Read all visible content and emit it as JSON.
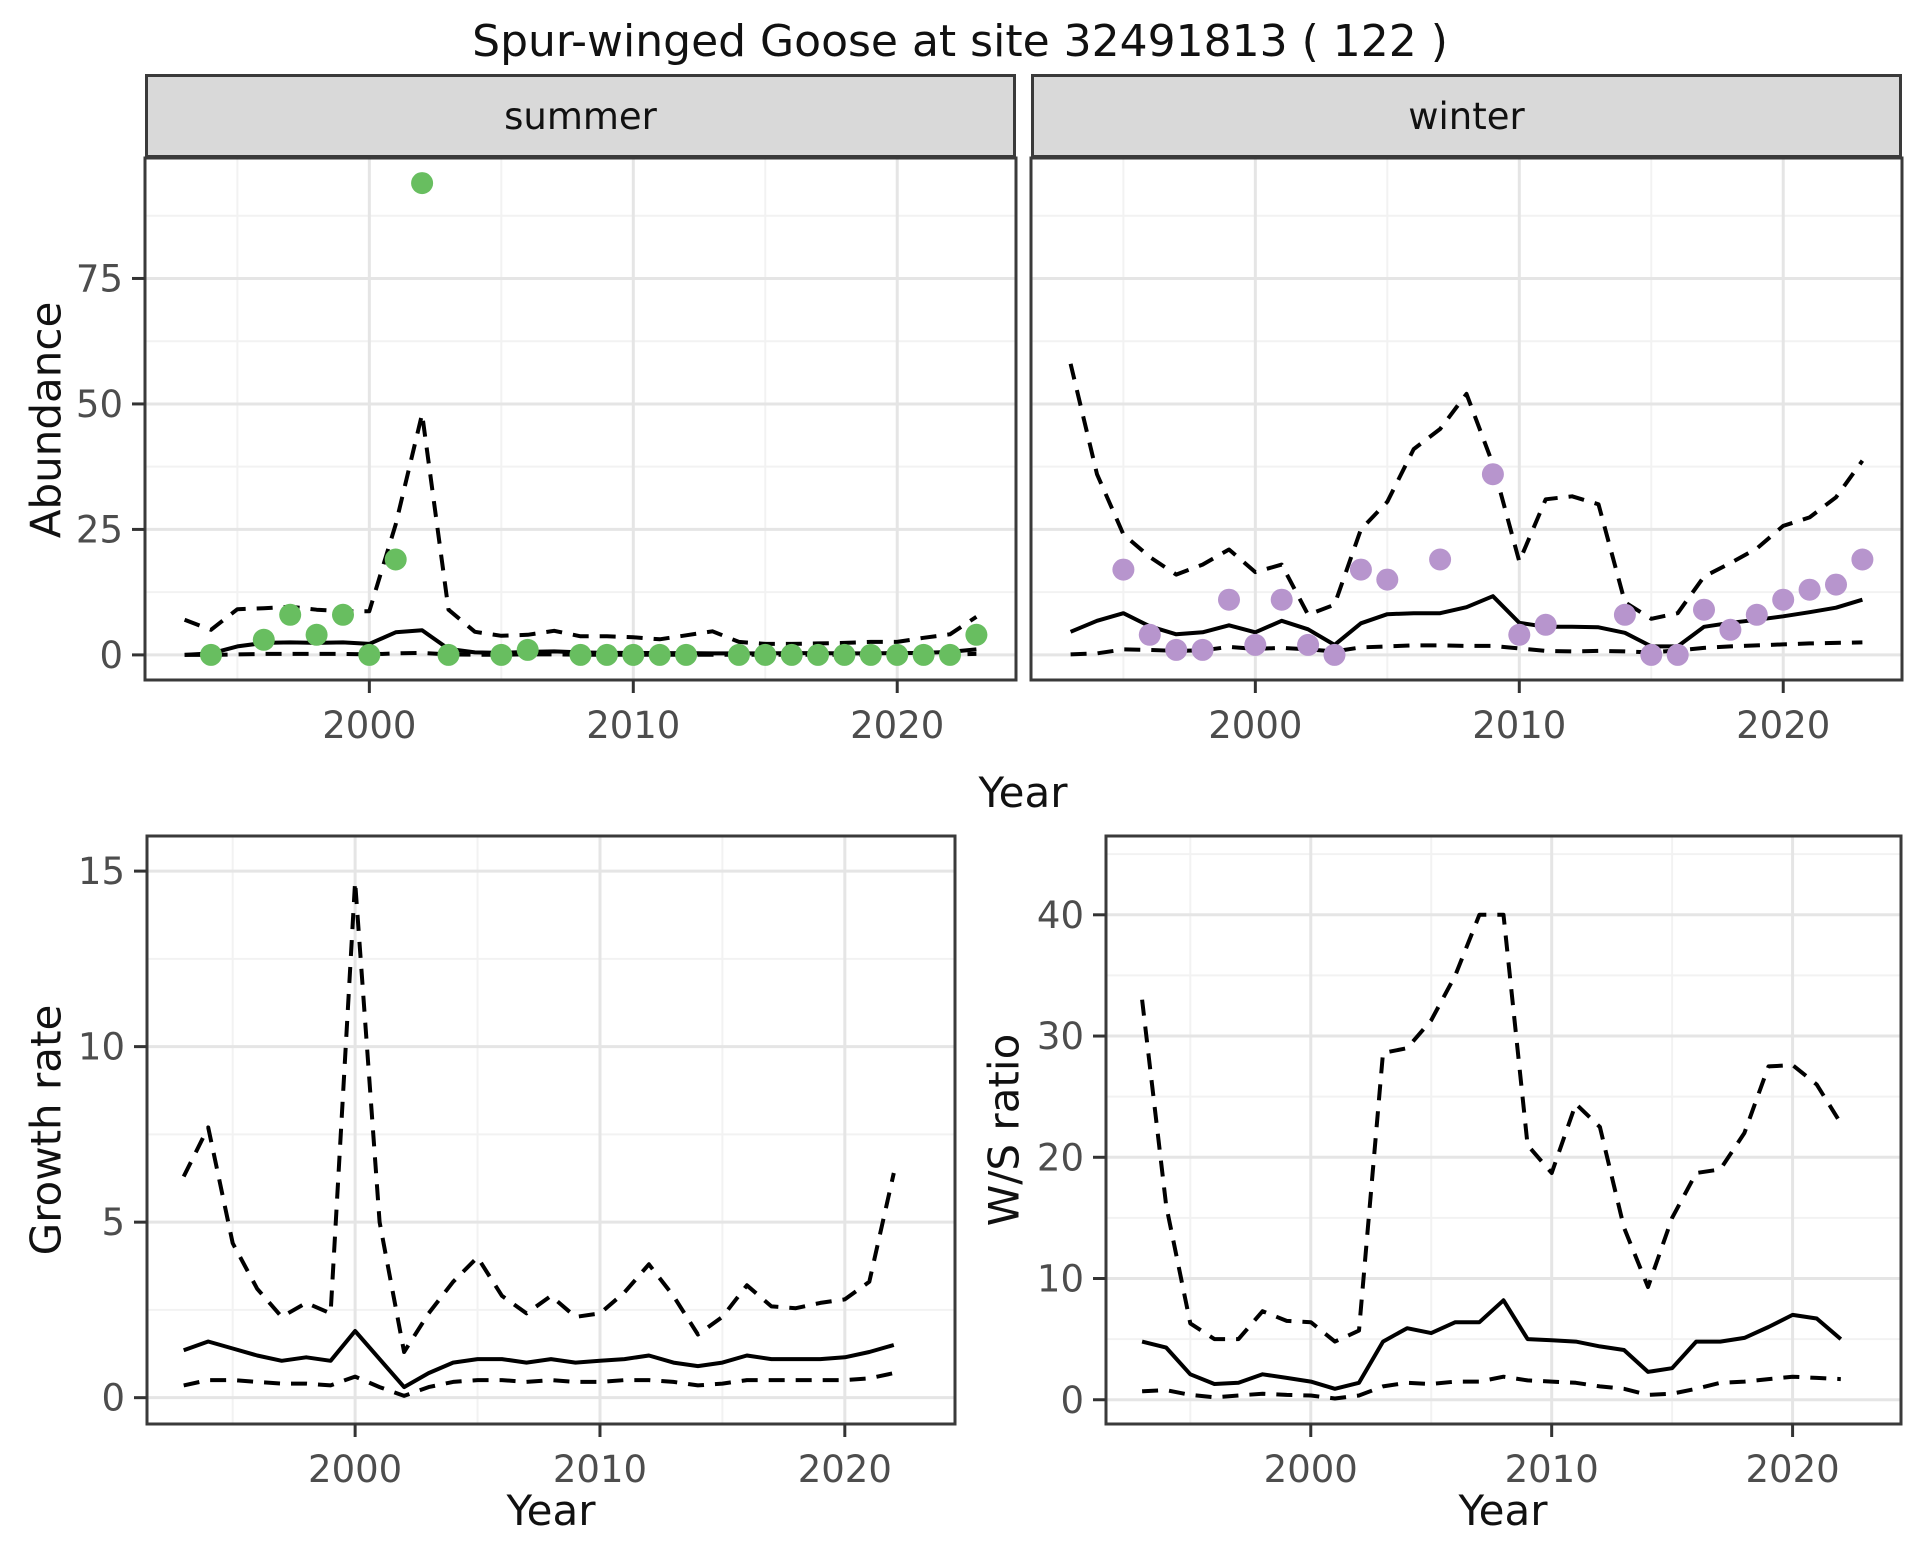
{
  "title": "Spur-winged Goose at site 32491813 ( 122 )",
  "labels": {
    "y_abundance": "Abundance",
    "y_growth": "Growth rate",
    "y_ws": "W/S ratio",
    "x_year_top": "Year",
    "x_year_growth": "Year",
    "x_year_ws": "Year"
  },
  "facets": {
    "summer": "summer",
    "winter": "winter"
  },
  "colors": {
    "summer_points": "#68BE60",
    "winter_points": "#B795CD",
    "line": "#000000",
    "tick_text": "#4d4d4d",
    "grid_major": "#e5e5e5",
    "grid_minor": "#f2f2f2",
    "panel_border": "#3a3a3a",
    "strip_fill": "#d9d9d9"
  },
  "chart_data": [
    {
      "type": "line+scatter",
      "id": "summer",
      "facet_label": "summer",
      "xlabel": "Year",
      "ylabel": "Abundance",
      "xlim": [
        1991.5,
        2024.5
      ],
      "ylim": [
        -5,
        99
      ],
      "x_ticks": [
        2000,
        2010,
        2020
      ],
      "x_minor": [
        1995,
        2005,
        2015
      ],
      "y_ticks": [
        0,
        25,
        50,
        75
      ],
      "y_minor": [
        12.5,
        37.5,
        62.5,
        87.5
      ],
      "years": [
        1993,
        1994,
        1995,
        1996,
        1997,
        1998,
        1999,
        2000,
        2001,
        2002,
        2003,
        2004,
        2005,
        2006,
        2007,
        2008,
        2009,
        2010,
        2011,
        2012,
        2013,
        2014,
        2015,
        2016,
        2017,
        2018,
        2019,
        2020,
        2021,
        2022,
        2023
      ],
      "series": [
        {
          "name": "upper CI",
          "style": "dashed",
          "values": [
            7.0,
            5.0,
            9.1,
            9.3,
            9.6,
            9.0,
            8.7,
            8.7,
            26,
            48,
            9,
            4.6,
            3.8,
            4.0,
            4.8,
            3.7,
            3.7,
            3.5,
            3.1,
            3.9,
            4.7,
            2.6,
            2.2,
            2.2,
            2.3,
            2.4,
            2.6,
            2.6,
            3.4,
            4.1,
            7.6
          ]
        },
        {
          "name": "median",
          "style": "solid",
          "values": [
            0.0,
            0.3,
            1.7,
            2.4,
            2.5,
            2.4,
            2.5,
            2.2,
            4.5,
            4.9,
            1.2,
            0.5,
            0.4,
            0.6,
            0.7,
            0.5,
            0.4,
            0.4,
            0.35,
            0.35,
            0.3,
            0.3,
            0.3,
            0.35,
            0.35,
            0.3,
            0.3,
            0.35,
            0.4,
            0.6,
            1.1
          ]
        },
        {
          "name": "lower CI",
          "style": "dashed",
          "values": [
            0.0,
            0.0,
            0.1,
            0.2,
            0.2,
            0.2,
            0.2,
            0.1,
            0.3,
            0.4,
            0.1,
            0.05,
            0.05,
            0.1,
            0.1,
            0.05,
            0.05,
            0.05,
            0.05,
            0.05,
            0.05,
            0.05,
            0.05,
            0.05,
            0.05,
            0.05,
            0.05,
            0.05,
            0.1,
            0.1,
            0.2
          ]
        }
      ],
      "points": {
        "color_key": "summer_points",
        "years": [
          1994,
          1996,
          1997,
          1998,
          1999,
          2000,
          2001,
          2002,
          2003,
          2005,
          2006,
          2008,
          2009,
          2010,
          2011,
          2012,
          2014,
          2015,
          2016,
          2017,
          2018,
          2019,
          2020,
          2021,
          2022,
          2023
        ],
        "values": [
          0,
          3,
          8,
          4,
          8,
          0,
          19,
          94,
          0,
          0,
          1,
          0,
          0,
          0,
          0,
          0,
          0,
          0,
          0,
          0,
          0,
          0,
          0,
          0,
          0,
          4
        ]
      }
    },
    {
      "type": "line+scatter",
      "id": "winter",
      "facet_label": "winter",
      "xlabel": "Year",
      "ylabel": "",
      "xlim": [
        1991.5,
        2024.5
      ],
      "ylim": [
        -5,
        99
      ],
      "x_ticks": [
        2000,
        2010,
        2020
      ],
      "x_minor": [
        1995,
        2005,
        2015
      ],
      "y_ticks": [
        0,
        25,
        50,
        75
      ],
      "y_minor": [
        12.5,
        37.5,
        62.5,
        87.5
      ],
      "years": [
        1993,
        1994,
        1995,
        1996,
        1997,
        1998,
        1999,
        2000,
        2001,
        2002,
        2003,
        2004,
        2005,
        2006,
        2007,
        2008,
        2009,
        2010,
        2011,
        2012,
        2013,
        2014,
        2015,
        2016,
        2017,
        2018,
        2019,
        2020,
        2021,
        2022,
        2023
      ],
      "series": [
        {
          "name": "upper CI",
          "style": "dashed",
          "values": [
            58,
            36,
            24,
            19.5,
            16,
            18,
            21,
            16.5,
            18,
            8,
            10,
            25,
            30.5,
            41,
            45,
            52,
            38,
            18.6,
            31,
            31.6,
            30,
            10.5,
            7.2,
            8.3,
            15.6,
            18.3,
            21.2,
            25.7,
            27.4,
            31.4,
            38.7
          ]
        },
        {
          "name": "median",
          "style": "solid",
          "values": [
            4.6,
            6.8,
            8.3,
            5.7,
            4.1,
            4.5,
            5.9,
            4.5,
            6.8,
            5.1,
            2.0,
            6.3,
            8.1,
            8.3,
            8.3,
            9.5,
            11.7,
            6.4,
            5.6,
            5.6,
            5.5,
            4.4,
            1.7,
            1.7,
            5.6,
            6.4,
            7.0,
            7.7,
            8.5,
            9.4,
            11.0
          ]
        },
        {
          "name": "lower CI",
          "style": "dashed",
          "values": [
            0.1,
            0.3,
            1.1,
            1.0,
            0.8,
            0.9,
            1.6,
            1.2,
            1.4,
            1.1,
            0.7,
            1.5,
            1.7,
            1.9,
            1.9,
            1.8,
            1.8,
            1.3,
            0.8,
            0.7,
            0.8,
            0.7,
            0.5,
            0.9,
            1.4,
            1.7,
            1.9,
            2.1,
            2.3,
            2.4,
            2.5
          ]
        }
      ],
      "points": {
        "color_key": "winter_points",
        "years": [
          1995,
          1996,
          1997,
          1998,
          1999,
          2000,
          2001,
          2002,
          2003,
          2004,
          2005,
          2007,
          2009,
          2010,
          2011,
          2014,
          2015,
          2016,
          2017,
          2018,
          2019,
          2020,
          2021,
          2022,
          2023
        ],
        "values": [
          17,
          4,
          1,
          1,
          11,
          2,
          11,
          2,
          0,
          17,
          15,
          19,
          36,
          4,
          6,
          8,
          0,
          0,
          9,
          5,
          8,
          11,
          13,
          14,
          19
        ]
      }
    },
    {
      "type": "line",
      "id": "growth",
      "facet_label": "",
      "xlabel": "Year",
      "ylabel": "Growth rate",
      "xlim": [
        1991.5,
        2024.5
      ],
      "ylim": [
        -0.75,
        16
      ],
      "x_ticks": [
        2000,
        2010,
        2020
      ],
      "x_minor": [
        1995,
        2005,
        2015
      ],
      "y_ticks": [
        0,
        5,
        10,
        15
      ],
      "y_minor": [
        2.5,
        7.5,
        12.5
      ],
      "years": [
        1993,
        1994,
        1995,
        1996,
        1997,
        1998,
        1999,
        2000,
        2001,
        2002,
        2003,
        2004,
        2005,
        2006,
        2007,
        2008,
        2009,
        2010,
        2011,
        2012,
        2013,
        2014,
        2015,
        2016,
        2017,
        2018,
        2019,
        2020,
        2021,
        2022
      ],
      "series": [
        {
          "name": "upper CI",
          "style": "dashed",
          "values": [
            6.3,
            7.7,
            4.4,
            3.1,
            2.3,
            2.7,
            2.4,
            14.7,
            5.0,
            1.3,
            2.4,
            3.3,
            4.0,
            2.9,
            2.4,
            2.9,
            2.3,
            2.4,
            3.0,
            3.8,
            2.9,
            1.8,
            2.3,
            3.2,
            2.6,
            2.55,
            2.7,
            2.8,
            3.3,
            6.4
          ]
        },
        {
          "name": "median",
          "style": "solid",
          "values": [
            1.35,
            1.6,
            1.4,
            1.2,
            1.05,
            1.15,
            1.05,
            1.9,
            1.1,
            0.3,
            0.7,
            1.0,
            1.1,
            1.1,
            1.0,
            1.1,
            1.0,
            1.05,
            1.1,
            1.2,
            1.0,
            0.9,
            1.0,
            1.2,
            1.1,
            1.1,
            1.1,
            1.15,
            1.3,
            1.5
          ]
        },
        {
          "name": "lower CI",
          "style": "dashed",
          "values": [
            0.35,
            0.5,
            0.5,
            0.45,
            0.4,
            0.4,
            0.35,
            0.6,
            0.3,
            0.05,
            0.3,
            0.45,
            0.5,
            0.5,
            0.45,
            0.5,
            0.45,
            0.45,
            0.5,
            0.5,
            0.45,
            0.35,
            0.4,
            0.5,
            0.5,
            0.5,
            0.5,
            0.5,
            0.55,
            0.7
          ]
        }
      ],
      "points": null
    },
    {
      "type": "line",
      "id": "ws",
      "facet_label": "",
      "xlabel": "Year",
      "ylabel": "W/S ratio",
      "xlim": [
        1991.5,
        2024.5
      ],
      "ylim": [
        -2,
        46.5
      ],
      "x_ticks": [
        2000,
        2010,
        2020
      ],
      "x_minor": [
        1995,
        2005,
        2015
      ],
      "y_ticks": [
        0,
        10,
        20,
        30,
        40
      ],
      "y_minor": [
        5,
        15,
        25,
        35,
        45
      ],
      "years": [
        1993,
        1994,
        1995,
        1996,
        1997,
        1998,
        1999,
        2000,
        2001,
        2002,
        2003,
        2004,
        2005,
        2006,
        2007,
        2008,
        2009,
        2010,
        2011,
        2012,
        2013,
        2014,
        2015,
        2016,
        2017,
        2018,
        2019,
        2020,
        2021,
        2022
      ],
      "series": [
        {
          "name": "upper CI",
          "style": "dashed",
          "values": [
            33,
            16,
            6.3,
            5.0,
            5.0,
            7.3,
            6.5,
            6.4,
            4.8,
            5.7,
            28.6,
            29.0,
            31.3,
            35.0,
            40.0,
            40.0,
            21.0,
            18.7,
            24.4,
            22.5,
            14.2,
            9.3,
            15.0,
            18.7,
            19.0,
            22.0,
            27.5,
            27.6,
            26.0,
            22.8
          ]
        },
        {
          "name": "median",
          "style": "solid",
          "values": [
            4.8,
            4.3,
            2.1,
            1.3,
            1.4,
            2.1,
            1.8,
            1.5,
            0.9,
            1.4,
            4.8,
            5.9,
            5.5,
            6.4,
            6.4,
            8.2,
            5.0,
            4.9,
            4.8,
            4.4,
            4.1,
            2.3,
            2.6,
            4.8,
            4.8,
            5.1,
            6.0,
            7.0,
            6.7,
            5.0
          ]
        },
        {
          "name": "lower CI",
          "style": "dashed",
          "values": [
            0.7,
            0.8,
            0.4,
            0.2,
            0.35,
            0.5,
            0.4,
            0.35,
            0.1,
            0.35,
            1.1,
            1.4,
            1.3,
            1.5,
            1.5,
            1.9,
            1.6,
            1.5,
            1.4,
            1.1,
            0.9,
            0.4,
            0.5,
            0.9,
            1.4,
            1.5,
            1.7,
            1.9,
            1.8,
            1.7
          ]
        }
      ],
      "points": null
    }
  ]
}
